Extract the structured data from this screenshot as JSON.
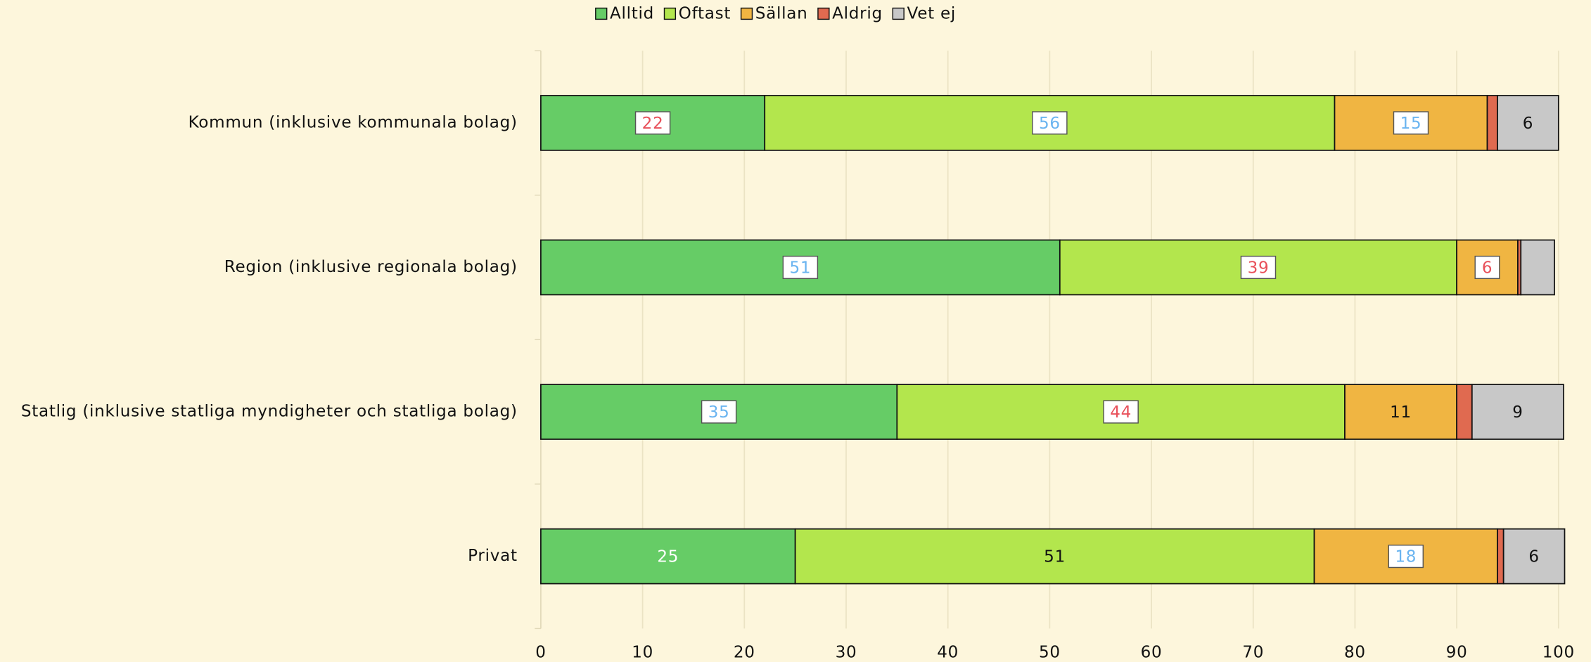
{
  "chart_data": {
    "type": "stacked_barh",
    "categories": [
      "Kommun (inklusive kommunala bolag)",
      "Region (inklusive regionala bolag)",
      "Statlig (inklusive statliga myndigheter och statliga bolag)",
      "Privat"
    ],
    "series": [
      {
        "name": "Alltid",
        "color": "#66cc66",
        "values": [
          22,
          51,
          35,
          25
        ],
        "label_colors": [
          "#e8505a",
          "#6ab4f0",
          "#6ab4f0",
          "#ffffff"
        ]
      },
      {
        "name": "Oftast",
        "color": "#b3e64d",
        "values": [
          56,
          39,
          44,
          51
        ],
        "label_colors": [
          "#6ab4f0",
          "#e8505a",
          "#e8505a",
          "#111111"
        ]
      },
      {
        "name": "Sällan",
        "color": "#f0b542",
        "values": [
          15,
          6,
          11,
          18
        ],
        "label_colors": [
          "#6ab4f0",
          "#e8505a",
          "#111111",
          "#6ab4f0"
        ]
      },
      {
        "name": "Aldrig",
        "color": "#e06a50",
        "values": [
          1,
          0.3,
          1.5,
          0.6
        ],
        "label_colors": [
          null,
          null,
          null,
          null
        ]
      },
      {
        "name": "Vet ej",
        "color": "#c8c8c8",
        "values": [
          6,
          3.3,
          9,
          6
        ],
        "label_colors": [
          "#111111",
          null,
          "#111111",
          "#111111"
        ]
      }
    ],
    "label_boxed_colors": [
      "#e8505a",
      "#6ab4f0"
    ],
    "xlim": [
      0,
      100
    ],
    "xticks": [
      0,
      10,
      20,
      30,
      40,
      50,
      60,
      70,
      80,
      90,
      100
    ],
    "grid": true,
    "legend": "top"
  }
}
